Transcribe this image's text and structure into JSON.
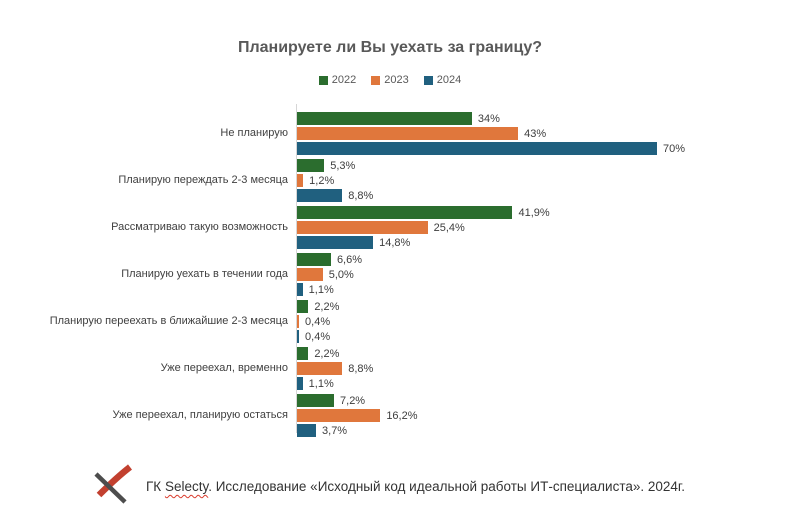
{
  "chart_data": {
    "type": "bar",
    "orientation": "horizontal",
    "title": "Планируете ли Вы уехать за границу?",
    "categories": [
      "Не планирую",
      "Планирую переждать 2-3 месяца",
      "Рассматриваю такую возможность",
      "Планирую уехать в течении года",
      "Планирую переехать в ближайшие 2-3 месяца",
      "Уже переехал, временно",
      "Уже переехал, планирую остаться"
    ],
    "series": [
      {
        "name": "2022",
        "color": "#2b6d2e",
        "values": [
          34,
          5.3,
          41.9,
          6.6,
          2.2,
          2.2,
          7.2
        ],
        "labels": [
          "34%",
          "5,3%",
          "41,9%",
          "6,6%",
          "2,2%",
          "2,2%",
          "7,2%"
        ]
      },
      {
        "name": "2023",
        "color": "#e0773c",
        "values": [
          43,
          1.2,
          25.4,
          5.0,
          0.4,
          8.8,
          16.2
        ],
        "labels": [
          "43%",
          "1,2%",
          "25,4%",
          "5,0%",
          "0,4%",
          "8,8%",
          "16,2%"
        ]
      },
      {
        "name": "2024",
        "color": "#20607f",
        "values": [
          70,
          8.8,
          14.8,
          1.1,
          0.4,
          1.1,
          3.7
        ],
        "labels": [
          "70%",
          "8,8%",
          "14,8%",
          "1,1%",
          "0,4%",
          "1,1%",
          "3,7%"
        ]
      }
    ],
    "xlim": [
      0,
      70
    ],
    "value_suffix": "%",
    "legend_position": "top",
    "grid": false,
    "axis_color": "#d6d6d6"
  },
  "footer": {
    "prefix": "ГК ",
    "brand": "Selecty",
    "suffix": ". Исследование «Исходный код идеальной работы ИТ-специалиста». 2024г."
  },
  "logo": {
    "name": "selecty-x-logo",
    "red": "#c2402f",
    "gray": "#4d4d4d"
  }
}
